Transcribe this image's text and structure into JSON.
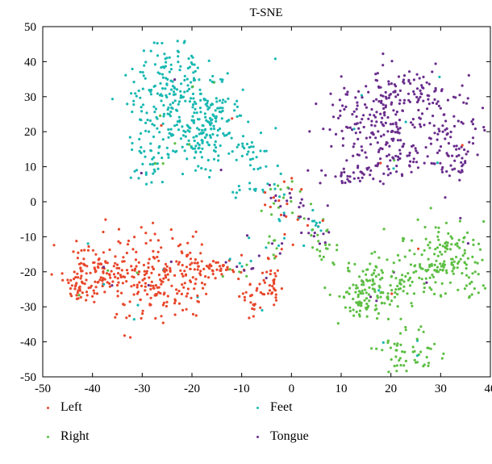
{
  "chart_data": {
    "type": "scatter",
    "title": "T-SNE",
    "xlabel": "",
    "ylabel": "",
    "xlim": [
      -50,
      40
    ],
    "ylim": [
      -50,
      50
    ],
    "xticks": [
      "-50",
      "-40",
      "-30",
      "-20",
      "-10",
      "0",
      "10",
      "20",
      "30",
      "40"
    ],
    "yticks": [
      "50",
      "40",
      "30",
      "20",
      "10",
      "0",
      "-10",
      "-20",
      "-30",
      "-40",
      "-50"
    ],
    "grid": false,
    "legend_position": "bottom",
    "series": [
      {
        "name": "Left",
        "color": "#e8472b"
      },
      {
        "name": "Right",
        "color": "#5dbf44"
      },
      {
        "name": "Feet",
        "color": "#19b8b2"
      },
      {
        "name": "Tongue",
        "color": "#6a2d8c"
      }
    ]
  }
}
